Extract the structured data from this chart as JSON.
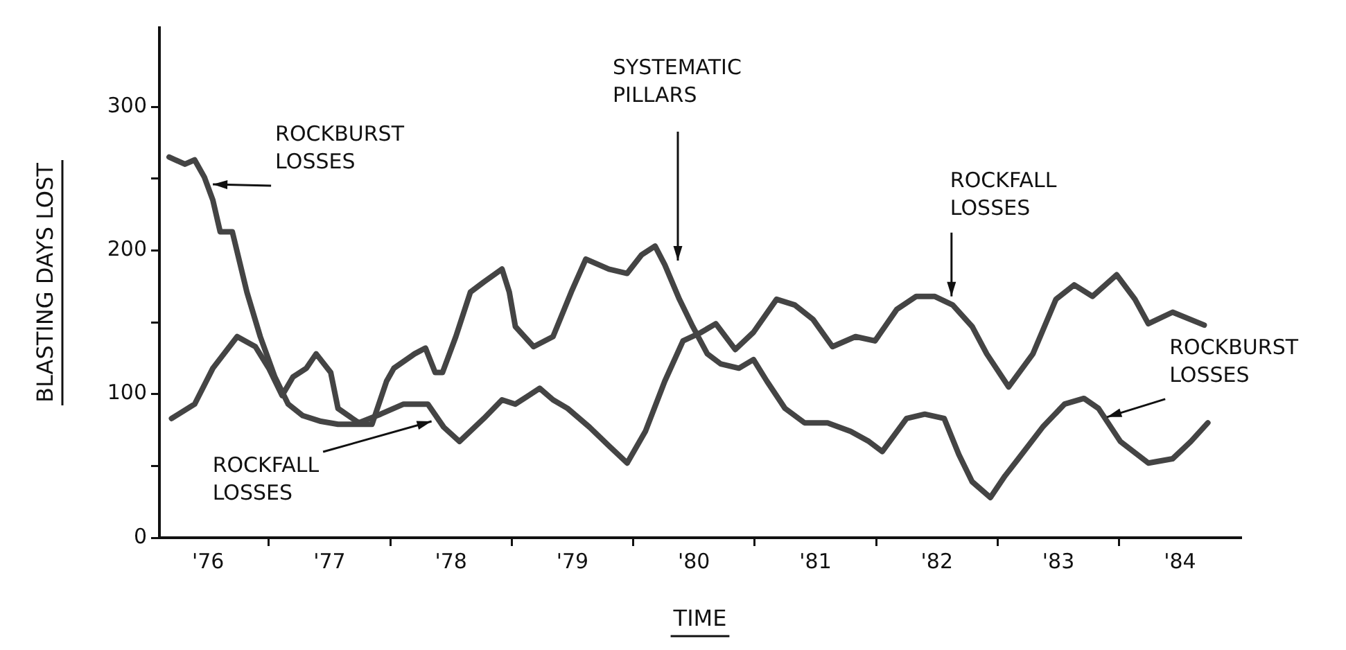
{
  "chart_data": {
    "type": "line",
    "xlabel": "TIME",
    "ylabel": "BLASTING DAYS LOST",
    "xlim": [
      75.6,
      84.5
    ],
    "ylim": [
      0,
      355
    ],
    "xticks": [
      {
        "value": 76,
        "label": "'76"
      },
      {
        "value": 76.5,
        "label": null
      },
      {
        "value": 77,
        "label": "'77"
      },
      {
        "value": 77.5,
        "label": null
      },
      {
        "value": 78,
        "label": "'78"
      },
      {
        "value": 78.5,
        "label": null
      },
      {
        "value": 79,
        "label": "'79"
      },
      {
        "value": 79.5,
        "label": null
      },
      {
        "value": 80,
        "label": "'80"
      },
      {
        "value": 80.5,
        "label": null
      },
      {
        "value": 81,
        "label": "'81"
      },
      {
        "value": 81.5,
        "label": null
      },
      {
        "value": 82,
        "label": "'82"
      },
      {
        "value": 82.5,
        "label": null
      },
      {
        "value": 83,
        "label": "'83"
      },
      {
        "value": 83.5,
        "label": null
      },
      {
        "value": 84,
        "label": "'84"
      }
    ],
    "yticks": [
      0,
      {
        "value": 50,
        "label": null
      },
      100,
      {
        "value": 150,
        "label": null
      },
      200,
      {
        "value": 250,
        "label": null
      },
      300
    ],
    "grid": false,
    "legend": false,
    "marker": "none",
    "line_style": "solid",
    "series": [
      {
        "color": "#444444",
        "x": [
          75.68,
          75.81,
          75.89,
          75.97,
          76.04,
          76.1,
          76.2,
          76.32,
          76.43,
          76.55,
          76.66,
          76.78,
          76.93,
          77.07,
          77.24,
          77.35,
          77.47,
          77.53,
          77.7,
          77.79,
          77.87,
          77.93,
          78.04,
          78.16,
          78.27,
          78.42,
          78.48,
          78.53,
          78.68,
          78.84,
          78.99,
          79.11,
          79.3,
          79.45,
          79.57,
          79.68,
          79.76,
          79.88,
          79.99,
          80.11,
          80.22,
          80.37,
          80.49,
          80.6,
          80.75,
          80.91,
          81.1,
          81.29,
          81.44,
          81.55,
          81.75,
          81.9,
          82.06,
          82.18,
          82.29,
          82.44,
          82.56,
          82.67,
          82.87,
          83.05,
          83.21,
          83.33,
          83.51,
          83.74,
          83.94,
          84.09,
          84.23
        ],
        "values": [
          265,
          260,
          263,
          251,
          235,
          213,
          213,
          171,
          140,
          112,
          93,
          85,
          81,
          79,
          79,
          79,
          109,
          118,
          128,
          132,
          115,
          115,
          140,
          171,
          178,
          187,
          171,
          147,
          133,
          140,
          171,
          194,
          187,
          184,
          197,
          203,
          190,
          166,
          147,
          128,
          121,
          118,
          124,
          109,
          90,
          80,
          80,
          74,
          67,
          60,
          83,
          86,
          83,
          58,
          39,
          28,
          43,
          55,
          77,
          93,
          97,
          90,
          67,
          52,
          55,
          67,
          80
        ]
      },
      {
        "color": "#444444",
        "x": [
          75.7,
          75.89,
          76.04,
          76.24,
          76.39,
          76.5,
          76.61,
          76.7,
          76.81,
          76.89,
          77.01,
          77.07,
          77.24,
          77.42,
          77.61,
          77.81,
          77.94,
          78.07,
          78.27,
          78.42,
          78.53,
          78.73,
          78.84,
          78.96,
          79.14,
          79.3,
          79.45,
          79.6,
          79.76,
          79.91,
          80.06,
          80.18,
          80.34,
          80.49,
          80.68,
          80.83,
          80.98,
          81.14,
          81.33,
          81.49,
          81.67,
          81.83,
          81.98,
          82.13,
          82.29,
          82.41,
          82.59,
          82.79,
          82.98,
          83.13,
          83.28,
          83.48,
          83.63,
          83.74,
          83.94,
          84.2
        ],
        "values": [
          83,
          93,
          118,
          140,
          133,
          118,
          99,
          112,
          118,
          128,
          115,
          90,
          80,
          86,
          93,
          93,
          77,
          67,
          83,
          96,
          93,
          104,
          96,
          90,
          77,
          64,
          52,
          74,
          109,
          137,
          143,
          149,
          131,
          143,
          166,
          162,
          152,
          133,
          140,
          137,
          159,
          168,
          168,
          162,
          147,
          128,
          105,
          128,
          166,
          176,
          168,
          183,
          166,
          149,
          157,
          148
        ]
      }
    ],
    "annotations": [
      {
        "text": "ROCKBURST\nLOSSES",
        "x": 76.04,
        "y": 246
      },
      {
        "text": "ROCKFALL\nLOSSES",
        "x": 77.84,
        "y": 81
      },
      "SYSTEMATIC\nPILLARS",
      {
        "text": "ROCKFALL\nLOSSES",
        "x": 82.12,
        "y": 168
      },
      {
        "text": "ROCKBURST\nLOSSES",
        "x": 83.4,
        "y": 84
      }
    ]
  }
}
